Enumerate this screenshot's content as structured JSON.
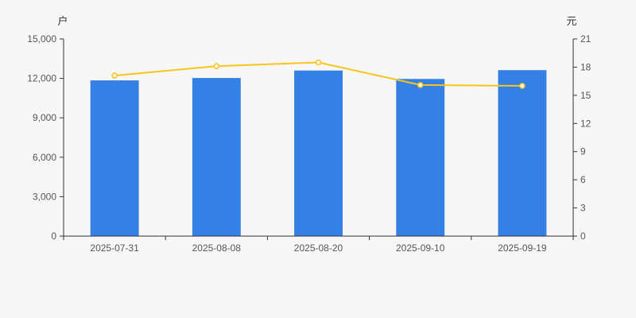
{
  "canvas": {
    "background": "#f7f7f7"
  },
  "chart_data": {
    "type": "bar",
    "categories": [
      "2025-07-31",
      "2025-08-08",
      "2025-08-20",
      "2025-09-10",
      "2025-09-19"
    ],
    "series": [
      {
        "name": "households-bars",
        "type": "bar",
        "axis": "left",
        "unit": "户",
        "color": "#3580e4",
        "values": [
          11850,
          12030,
          12600,
          11960,
          12630
        ]
      },
      {
        "name": "price-line",
        "type": "line",
        "axis": "right",
        "unit": "元",
        "color": "#fac41e",
        "marker_fill": "#ffffff",
        "values": [
          17.1,
          18.1,
          18.5,
          16.1,
          16.0
        ]
      }
    ],
    "left_axis": {
      "name": "户",
      "min": 0,
      "max": 15000,
      "interval": 3000,
      "tick_labels": [
        "0",
        "3,000",
        "6,000",
        "9,000",
        "12,000",
        "15,000"
      ]
    },
    "right_axis": {
      "name": "元",
      "min": 0,
      "max": 21,
      "interval": 3,
      "tick_labels": [
        "0",
        "3",
        "6",
        "9",
        "12",
        "15",
        "18",
        "21"
      ]
    },
    "title": "",
    "legend": null,
    "grid": false,
    "colors": {
      "axis_line": "#333333",
      "tick_text": "#555555",
      "axis_name_text": "#333333"
    }
  }
}
